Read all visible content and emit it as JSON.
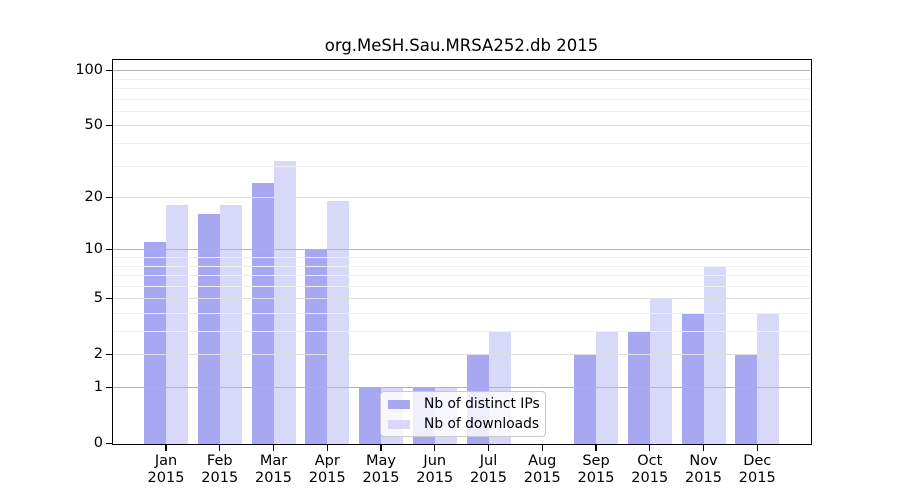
{
  "title": "org.MeSH.Sau.MRSA252.db 2015",
  "chart_data": {
    "type": "bar",
    "title": "org.MeSH.Sau.MRSA252.db 2015",
    "categories": [
      "Jan",
      "Feb",
      "Mar",
      "Apr",
      "May",
      "Jun",
      "Jul",
      "Aug",
      "Sep",
      "Oct",
      "Nov",
      "Dec"
    ],
    "x_tick_second_line": "2015",
    "series": [
      {
        "name": "Nb of distinct IPs",
        "color": "#a8a8f2",
        "values": [
          11,
          16,
          24,
          10,
          1,
          1,
          2,
          0,
          2,
          3,
          4,
          2
        ]
      },
      {
        "name": "Nb of downloads",
        "color": "#d8d8f8",
        "values": [
          18,
          18,
          32,
          19,
          1,
          1,
          3,
          0,
          3,
          5,
          8,
          4
        ]
      }
    ],
    "y_axis": {
      "scale": "log1p",
      "tick_labels": [
        "0",
        "1",
        "2",
        "5",
        "10",
        "20",
        "50",
        "100"
      ],
      "major_gridlines": [
        1,
        2,
        5,
        10,
        20,
        50,
        100
      ],
      "minor_gridlines": [
        3,
        4,
        6,
        7,
        8,
        9,
        30,
        40,
        60,
        70,
        80,
        90
      ],
      "ylim": [
        0,
        113
      ]
    },
    "legend": {
      "position": "inside-bottom-center",
      "entries": [
        "Nb of distinct IPs",
        "Nb of downloads"
      ]
    },
    "grid": true
  },
  "colors": {
    "bar_distinct_ips": "#a8a8f2",
    "bar_downloads": "#d8d8f8",
    "grid_decade": "#b4b4b4",
    "grid_major": "#dedede",
    "grid_minor": "#efefef",
    "axis": "#000000",
    "legend_border": "#c9c9c9"
  }
}
